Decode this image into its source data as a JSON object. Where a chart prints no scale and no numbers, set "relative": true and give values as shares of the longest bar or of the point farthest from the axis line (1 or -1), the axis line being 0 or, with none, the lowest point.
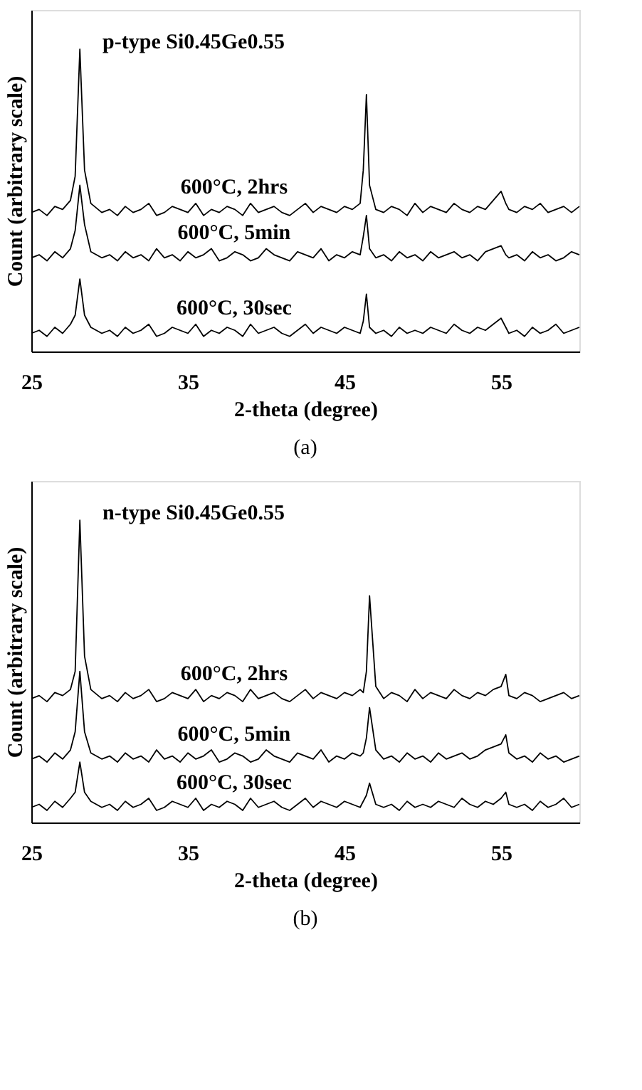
{
  "chart_data": [
    {
      "type": "line",
      "title": "p-type Si0.45Ge0.55",
      "xlabel": "2-theta (degree)",
      "ylabel": "Count (arbitrary scale)",
      "relative": true,
      "xlim": [
        25,
        60
      ],
      "xticks": [
        25,
        35,
        45,
        55
      ],
      "annotations": [
        "(a)"
      ],
      "x": [
        25,
        25.5,
        26,
        26.5,
        27,
        27.5,
        27.8,
        28.1,
        28.4,
        28.8,
        29.5,
        30,
        30.5,
        31,
        31.5,
        32,
        32.5,
        33,
        33.5,
        34,
        34.5,
        35,
        35.5,
        36,
        36.5,
        37,
        37.5,
        38,
        38.5,
        39,
        39.5,
        40,
        40.5,
        41,
        41.5,
        42,
        42.5,
        43,
        43.5,
        44,
        44.5,
        45,
        45.5,
        46,
        46.2,
        46.4,
        46.6,
        47,
        47.5,
        48,
        48.5,
        49,
        49.5,
        50,
        50.5,
        51,
        51.5,
        52,
        52.5,
        53,
        53.5,
        54,
        54.5,
        55,
        55.3,
        55.5,
        56,
        56.5,
        57,
        57.5,
        58,
        58.5,
        59,
        59.5,
        60
      ],
      "series": [
        {
          "name": "600°C, 2hrs",
          "color": "#000000",
          "values": [
            0.46,
            0.47,
            0.45,
            0.48,
            0.47,
            0.5,
            0.58,
            1.0,
            0.6,
            0.49,
            0.46,
            0.47,
            0.45,
            0.48,
            0.46,
            0.47,
            0.49,
            0.45,
            0.46,
            0.48,
            0.47,
            0.46,
            0.49,
            0.45,
            0.47,
            0.46,
            0.48,
            0.47,
            0.45,
            0.49,
            0.46,
            0.47,
            0.48,
            0.46,
            0.45,
            0.47,
            0.49,
            0.46,
            0.48,
            0.47,
            0.46,
            0.48,
            0.47,
            0.49,
            0.6,
            0.85,
            0.55,
            0.47,
            0.46,
            0.48,
            0.47,
            0.45,
            0.49,
            0.46,
            0.48,
            0.47,
            0.46,
            0.49,
            0.47,
            0.46,
            0.48,
            0.47,
            0.5,
            0.53,
            0.49,
            0.47,
            0.46,
            0.48,
            0.47,
            0.49,
            0.46,
            0.47,
            0.48,
            0.46,
            0.48
          ]
        },
        {
          "name": "600°C, 5min",
          "color": "#000000",
          "values": [
            0.31,
            0.32,
            0.3,
            0.33,
            0.31,
            0.34,
            0.4,
            0.55,
            0.42,
            0.33,
            0.31,
            0.32,
            0.3,
            0.33,
            0.31,
            0.32,
            0.3,
            0.34,
            0.31,
            0.32,
            0.3,
            0.33,
            0.31,
            0.32,
            0.34,
            0.3,
            0.31,
            0.33,
            0.32,
            0.3,
            0.31,
            0.34,
            0.32,
            0.31,
            0.3,
            0.33,
            0.32,
            0.31,
            0.34,
            0.3,
            0.32,
            0.31,
            0.33,
            0.32,
            0.38,
            0.45,
            0.34,
            0.31,
            0.32,
            0.3,
            0.33,
            0.31,
            0.32,
            0.3,
            0.33,
            0.31,
            0.32,
            0.33,
            0.31,
            0.32,
            0.3,
            0.33,
            0.34,
            0.35,
            0.32,
            0.31,
            0.32,
            0.3,
            0.33,
            0.31,
            0.32,
            0.3,
            0.31,
            0.33,
            0.32
          ]
        },
        {
          "name": "600°C, 30sec",
          "color": "#000000",
          "values": [
            0.06,
            0.07,
            0.05,
            0.08,
            0.06,
            0.09,
            0.12,
            0.24,
            0.12,
            0.08,
            0.06,
            0.07,
            0.05,
            0.08,
            0.06,
            0.07,
            0.09,
            0.05,
            0.06,
            0.08,
            0.07,
            0.06,
            0.09,
            0.05,
            0.07,
            0.06,
            0.08,
            0.07,
            0.05,
            0.09,
            0.06,
            0.07,
            0.08,
            0.06,
            0.05,
            0.07,
            0.09,
            0.06,
            0.08,
            0.07,
            0.06,
            0.08,
            0.07,
            0.06,
            0.1,
            0.19,
            0.08,
            0.06,
            0.07,
            0.05,
            0.08,
            0.06,
            0.07,
            0.06,
            0.08,
            0.07,
            0.06,
            0.09,
            0.07,
            0.06,
            0.08,
            0.07,
            0.09,
            0.11,
            0.08,
            0.06,
            0.07,
            0.05,
            0.08,
            0.06,
            0.07,
            0.09,
            0.06,
            0.07,
            0.08
          ]
        }
      ]
    },
    {
      "type": "line",
      "title": "n-type Si0.45Ge0.55",
      "xlabel": "2-theta (degree)",
      "ylabel": "Count (arbitrary scale)",
      "relative": true,
      "xlim": [
        25,
        60
      ],
      "xticks": [
        25,
        35,
        45,
        55
      ],
      "annotations": [
        "(b)"
      ],
      "x": [
        25,
        25.5,
        26,
        26.5,
        27,
        27.5,
        27.8,
        28.1,
        28.4,
        28.8,
        29.5,
        30,
        30.5,
        31,
        31.5,
        32,
        32.5,
        33,
        33.5,
        34,
        34.5,
        35,
        35.5,
        36,
        36.5,
        37,
        37.5,
        38,
        38.5,
        39,
        39.5,
        40,
        40.5,
        41,
        41.5,
        42,
        42.5,
        43,
        43.5,
        44,
        44.5,
        45,
        45.5,
        46,
        46.2,
        46.4,
        46.6,
        47,
        47.5,
        48,
        48.5,
        49,
        49.5,
        50,
        50.5,
        51,
        51.5,
        52,
        52.5,
        53,
        53.5,
        54,
        54.5,
        55,
        55.3,
        55.5,
        56,
        56.5,
        57,
        57.5,
        58,
        58.5,
        59,
        59.5,
        60
      ],
      "series": [
        {
          "name": "600°C, 2hrs",
          "color": "#000000",
          "values": [
            0.41,
            0.42,
            0.4,
            0.43,
            0.42,
            0.44,
            0.5,
            1.0,
            0.55,
            0.44,
            0.41,
            0.42,
            0.4,
            0.43,
            0.41,
            0.42,
            0.44,
            0.4,
            0.41,
            0.43,
            0.42,
            0.41,
            0.44,
            0.4,
            0.42,
            0.41,
            0.43,
            0.42,
            0.4,
            0.44,
            0.41,
            0.42,
            0.43,
            0.41,
            0.4,
            0.42,
            0.44,
            0.41,
            0.43,
            0.42,
            0.41,
            0.43,
            0.42,
            0.44,
            0.43,
            0.5,
            0.75,
            0.45,
            0.41,
            0.43,
            0.42,
            0.4,
            0.44,
            0.41,
            0.43,
            0.42,
            0.41,
            0.44,
            0.42,
            0.41,
            0.43,
            0.42,
            0.44,
            0.45,
            0.49,
            0.42,
            0.41,
            0.43,
            0.42,
            0.4,
            0.41,
            0.42,
            0.43,
            0.41,
            0.42
          ]
        },
        {
          "name": "600°C, 5min",
          "color": "#000000",
          "values": [
            0.21,
            0.22,
            0.2,
            0.23,
            0.21,
            0.24,
            0.3,
            0.5,
            0.3,
            0.23,
            0.21,
            0.22,
            0.2,
            0.23,
            0.21,
            0.22,
            0.2,
            0.24,
            0.21,
            0.22,
            0.2,
            0.23,
            0.21,
            0.22,
            0.24,
            0.2,
            0.21,
            0.23,
            0.22,
            0.2,
            0.21,
            0.24,
            0.22,
            0.21,
            0.2,
            0.23,
            0.22,
            0.21,
            0.24,
            0.2,
            0.22,
            0.21,
            0.23,
            0.22,
            0.23,
            0.28,
            0.38,
            0.24,
            0.21,
            0.22,
            0.2,
            0.23,
            0.21,
            0.22,
            0.2,
            0.23,
            0.21,
            0.22,
            0.23,
            0.21,
            0.22,
            0.24,
            0.25,
            0.26,
            0.29,
            0.23,
            0.21,
            0.22,
            0.2,
            0.23,
            0.21,
            0.22,
            0.2,
            0.21,
            0.22
          ]
        },
        {
          "name": "600°C, 30sec",
          "color": "#000000",
          "values": [
            0.05,
            0.06,
            0.04,
            0.07,
            0.05,
            0.08,
            0.1,
            0.2,
            0.1,
            0.07,
            0.05,
            0.06,
            0.04,
            0.07,
            0.05,
            0.06,
            0.08,
            0.04,
            0.05,
            0.07,
            0.06,
            0.05,
            0.08,
            0.04,
            0.06,
            0.05,
            0.07,
            0.06,
            0.04,
            0.08,
            0.05,
            0.06,
            0.07,
            0.05,
            0.04,
            0.06,
            0.08,
            0.05,
            0.07,
            0.06,
            0.05,
            0.07,
            0.06,
            0.05,
            0.07,
            0.09,
            0.13,
            0.06,
            0.05,
            0.06,
            0.04,
            0.07,
            0.05,
            0.06,
            0.05,
            0.07,
            0.06,
            0.05,
            0.08,
            0.06,
            0.05,
            0.07,
            0.06,
            0.08,
            0.1,
            0.06,
            0.05,
            0.06,
            0.04,
            0.07,
            0.05,
            0.06,
            0.08,
            0.05,
            0.06
          ]
        }
      ]
    }
  ]
}
